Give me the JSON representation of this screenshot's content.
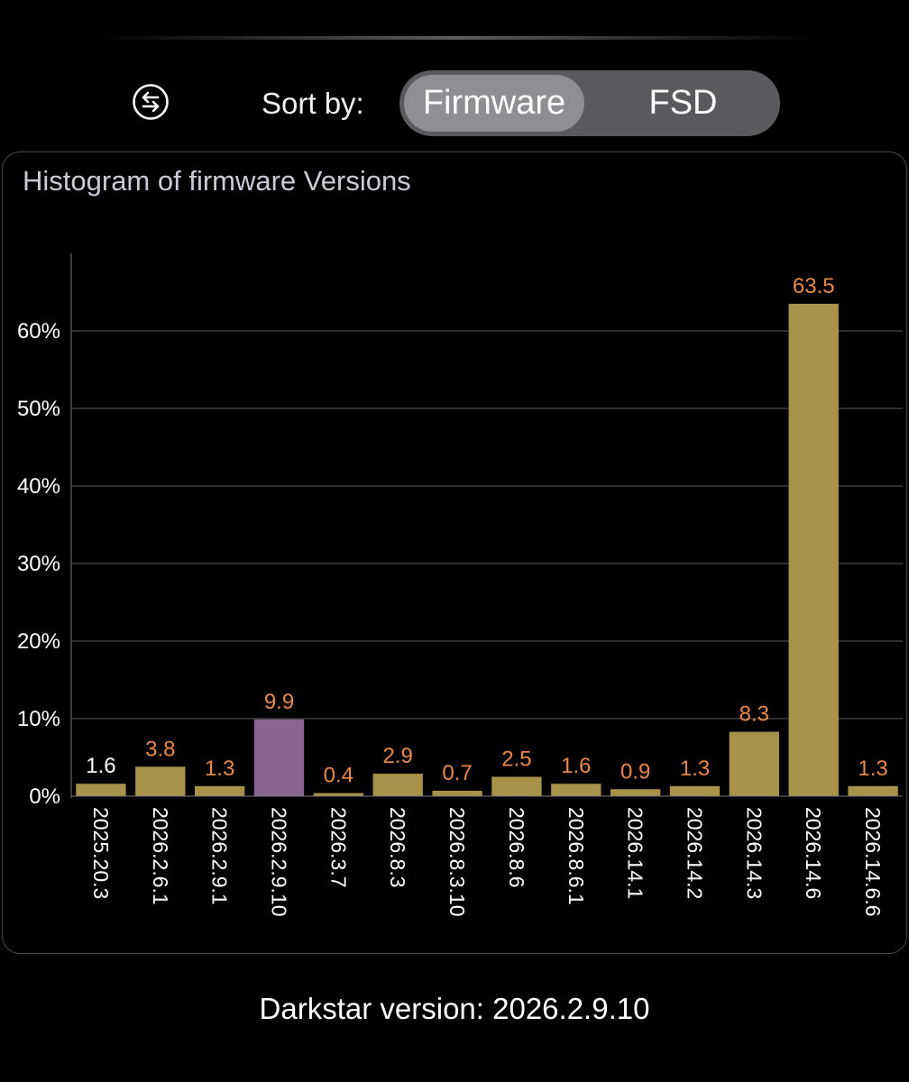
{
  "header": {
    "sort_label": "Sort by:",
    "options": [
      "Firmware",
      "FSD"
    ],
    "selected": "Firmware",
    "icon": "swap-arrows-icon"
  },
  "card": {
    "title": "Histogram of firmware Versions"
  },
  "chart_data": {
    "type": "bar",
    "title": "Histogram of firmware Versions",
    "xlabel": "",
    "ylabel": "",
    "categories": [
      "2025.20.3",
      "2026.2.6.1",
      "2026.2.9.1",
      "2026.2.9.10",
      "2026.3.7",
      "2026.8.3",
      "2026.8.3.10",
      "2026.8.6",
      "2026.8.6.1",
      "2026.14.1",
      "2026.14.2",
      "2026.14.3",
      "2026.14.6",
      "2026.14.6.6"
    ],
    "values": [
      1.6,
      3.8,
      1.3,
      9.9,
      0.4,
      2.9,
      0.7,
      2.5,
      1.6,
      0.9,
      1.3,
      8.3,
      63.5,
      1.3
    ],
    "value_labels": [
      "1.6",
      "3.8",
      "1.3",
      "9.9",
      "0.4",
      "2.9",
      "0.7",
      "2.5",
      "1.6",
      "0.9",
      "1.3",
      "8.3",
      "63.5",
      "1.3"
    ],
    "y_ticks": [
      0,
      10,
      20,
      30,
      40,
      50,
      60
    ],
    "y_tick_labels": [
      "0%",
      "10%",
      "20%",
      "30%",
      "40%",
      "50%",
      "60%"
    ],
    "ylim": [
      0,
      70
    ],
    "grid": true,
    "highlighted_category": "2026.2.9.10",
    "colors": {
      "bar": "#a8924a",
      "highlight": "#8a6592",
      "value_label": "#e8894a",
      "value_label_first": "#ffffff",
      "grid": "#5a5a5a",
      "tick_label": "#ffffff"
    }
  },
  "footer": {
    "text": "Darkstar version: 2026.2.9.10"
  }
}
